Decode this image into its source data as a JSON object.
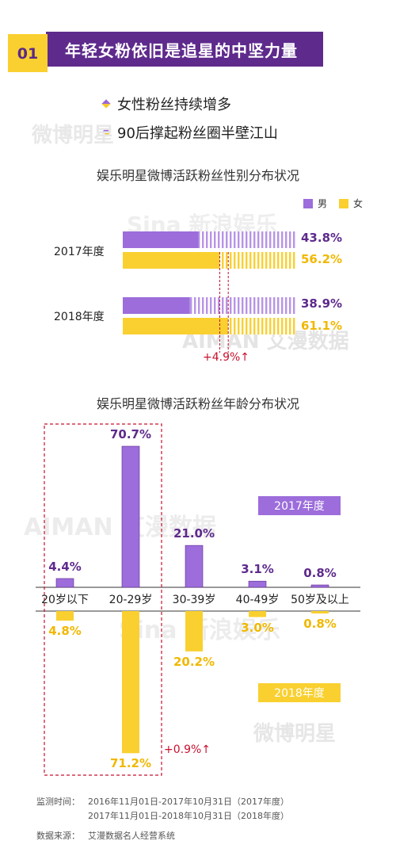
{
  "header": {
    "number": "01",
    "title": "年轻女粉依旧是追星的中坚力量"
  },
  "bullets": [
    "女性粉丝持续增多",
    "90后撑起粉丝圈半壁江山"
  ],
  "colors": {
    "purple": "#9c6ddb",
    "purple_dark": "#5e2a8c",
    "yellow": "#f9d030",
    "yellow_text": "#f0b800",
    "red": "#c8102e"
  },
  "watermarks": {
    "weibo": "微博明星",
    "aiman": "AIMAN 艾漫数据",
    "sina": "Sina 新浪娱乐"
  },
  "chart_data": [
    {
      "type": "bar",
      "orientation": "horizontal-stacked",
      "title": "娱乐明星微博活跃粉丝性别分布状况",
      "categories": [
        "2017年度",
        "2018年度"
      ],
      "series": [
        {
          "name": "男",
          "values": [
            43.8,
            38.9
          ],
          "labels": [
            "43.8%",
            "38.9%"
          ]
        },
        {
          "name": "女",
          "values": [
            56.2,
            61.1
          ],
          "labels": [
            "56.2%",
            "61.1%"
          ]
        }
      ],
      "annotation": "+4.9%↑",
      "legend": "top-right"
    },
    {
      "type": "bar",
      "orientation": "diverging-vertical",
      "title": "娱乐明星微博活跃粉丝年龄分布状况",
      "categories": [
        "20岁以下",
        "20-29岁",
        "30-39岁",
        "40-49岁",
        "50岁及以上"
      ],
      "series": [
        {
          "name": "2017年度",
          "values": [
            4.4,
            70.7,
            21.0,
            3.1,
            0.8
          ],
          "labels": [
            "4.4%",
            "70.7%",
            "21.0%",
            "3.1%",
            "0.8%"
          ]
        },
        {
          "name": "2018年度",
          "values": [
            4.8,
            71.2,
            20.2,
            3.0,
            0.8
          ],
          "labels": [
            "4.8%",
            "71.2%",
            "20.2%",
            "3.0%",
            "0.8%"
          ]
        }
      ],
      "annotation": "+0.9%↑"
    }
  ],
  "footer": {
    "period_label": "监测时间：",
    "period_1": "2016年11月01日-2017年10月31日（2017年度）",
    "period_2": "2017年11月01日-2018年10月31日（2018年度）",
    "source_label": "数据来源：",
    "source": "艾漫数据名人经营系统"
  }
}
